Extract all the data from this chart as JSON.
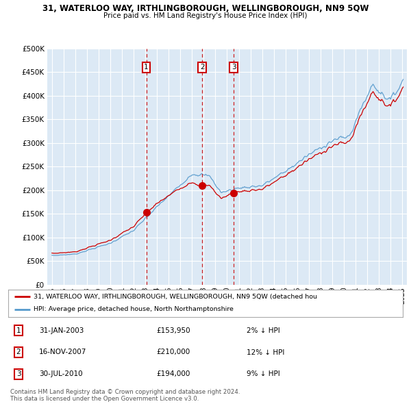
{
  "title": "31, WATERLOO WAY, IRTHLINGBOROUGH, WELLINGBOROUGH, NN9 5QW",
  "subtitle": "Price paid vs. HM Land Registry's House Price Index (HPI)",
  "ylim": [
    0,
    500000
  ],
  "yticks": [
    0,
    50000,
    100000,
    150000,
    200000,
    250000,
    300000,
    350000,
    400000,
    450000,
    500000
  ],
  "ytick_labels": [
    "£0",
    "£50K",
    "£100K",
    "£150K",
    "£200K",
    "£250K",
    "£300K",
    "£350K",
    "£400K",
    "£450K",
    "£500K"
  ],
  "background_color": "#ffffff",
  "plot_bg_color": "#dce9f5",
  "grid_color": "#ffffff",
  "red_line_color": "#cc0000",
  "blue_line_color": "#5599cc",
  "trans_years": [
    2003.08,
    2007.88,
    2010.58
  ],
  "trans_prices": [
    153950,
    210000,
    194000
  ],
  "trans_labels": [
    "1",
    "2",
    "3"
  ],
  "legend_line1": "31, WATERLOO WAY, IRTHLINGBOROUGH, WELLINGBOROUGH, NN9 5QW (detached hou",
  "legend_line2": "HPI: Average price, detached house, North Northamptonshire",
  "footnote": "Contains HM Land Registry data © Crown copyright and database right 2024.\nThis data is licensed under the Open Government Licence v3.0.",
  "table_rows": [
    [
      "1",
      "31-JAN-2003",
      "£153,950",
      "2% ↓ HPI"
    ],
    [
      "2",
      "16-NOV-2007",
      "£210,000",
      "12% ↓ HPI"
    ],
    [
      "3",
      "30-JUL-2010",
      "£194,000",
      "9% ↓ HPI"
    ]
  ]
}
